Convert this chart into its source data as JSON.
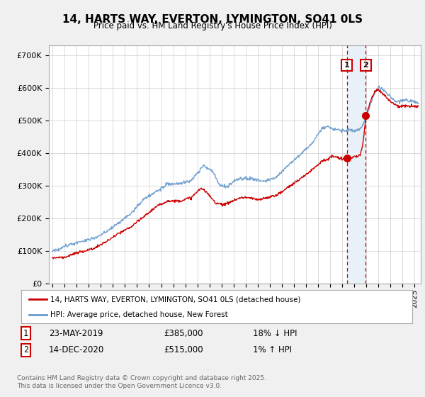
{
  "title": "14, HARTS WAY, EVERTON, LYMINGTON, SO41 0LS",
  "subtitle": "Price paid vs. HM Land Registry's House Price Index (HPI)",
  "ylabel_ticks": [
    "£0",
    "£100K",
    "£200K",
    "£300K",
    "£400K",
    "£500K",
    "£600K",
    "£700K"
  ],
  "ytick_values": [
    0,
    100000,
    200000,
    300000,
    400000,
    500000,
    600000,
    700000
  ],
  "ylim": [
    0,
    730000
  ],
  "xlim_start": 1994.7,
  "xlim_end": 2025.5,
  "sale1_date": 2019.38,
  "sale1_price": 385000,
  "sale1_label": "1",
  "sale2_date": 2020.95,
  "sale2_price": 515000,
  "sale2_label": "2",
  "legend_line1": "14, HARTS WAY, EVERTON, LYMINGTON, SO41 0LS (detached house)",
  "legend_line2": "HPI: Average price, detached house, New Forest",
  "footnote": "Contains HM Land Registry data © Crown copyright and database right 2025.\nThis data is licensed under the Open Government Licence v3.0.",
  "color_red": "#cc0000",
  "color_blue": "#6699cc",
  "color_shade": "#e8f0f8",
  "color_grid": "#cccccc",
  "background_color": "#f0f0f0",
  "plot_bg": "#ffffff"
}
